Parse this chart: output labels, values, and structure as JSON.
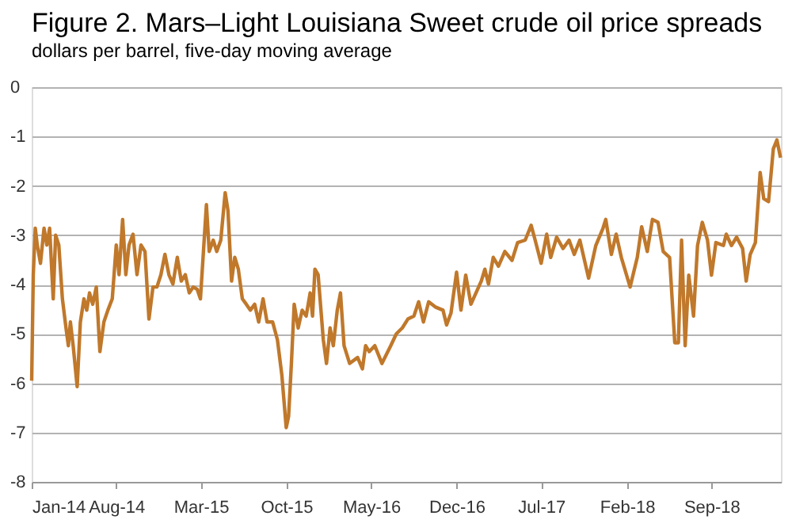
{
  "chart_data": {
    "type": "line",
    "title": "Figure 2. Mars–Light Louisiana Sweet crude oil price spreads",
    "subtitle": "dollars per barrel, five-day moving average",
    "x": [
      "2014-01-01",
      "2014-01-05",
      "2014-01-10",
      "2014-01-15",
      "2014-01-23",
      "2014-02-01",
      "2014-02-08",
      "2014-02-15",
      "2014-02-24",
      "2014-03-02",
      "2014-03-10",
      "2014-03-19",
      "2014-03-28",
      "2014-04-03",
      "2014-04-08",
      "2014-04-15",
      "2014-04-25",
      "2014-05-03",
      "2014-05-12",
      "2014-05-19",
      "2014-05-26",
      "2014-06-03",
      "2014-06-12",
      "2014-06-21",
      "2014-07-01",
      "2014-07-11",
      "2014-07-22",
      "2014-08-01",
      "2014-08-08",
      "2014-08-17",
      "2014-08-25",
      "2014-09-02",
      "2014-09-12",
      "2014-09-22",
      "2014-10-02",
      "2014-10-12",
      "2014-10-22",
      "2014-11-01",
      "2014-11-11",
      "2014-11-21",
      "2014-12-01",
      "2014-12-11",
      "2014-12-21",
      "2015-01-01",
      "2015-01-11",
      "2015-01-21",
      "2015-01-31",
      "2015-02-10",
      "2015-02-20",
      "2015-02-28",
      "2015-03-15",
      "2015-03-22",
      "2015-04-01",
      "2015-04-10",
      "2015-04-20",
      "2015-05-01",
      "2015-05-08",
      "2015-05-17",
      "2015-05-25",
      "2015-06-03",
      "2015-06-13",
      "2015-06-23",
      "2015-07-03",
      "2015-07-14",
      "2015-07-24",
      "2015-08-04",
      "2015-08-14",
      "2015-08-28",
      "2015-09-09",
      "2015-09-20",
      "2015-10-01",
      "2015-10-07",
      "2015-10-14",
      "2015-10-21",
      "2015-10-31",
      "2015-11-10",
      "2015-11-20",
      "2015-11-30",
      "2015-12-06",
      "2015-12-12",
      "2015-12-20",
      "2016-01-02",
      "2016-01-10",
      "2016-01-19",
      "2016-01-27",
      "2016-02-06",
      "2016-02-14",
      "2016-02-23",
      "2016-03-08",
      "2016-03-28",
      "2016-04-09",
      "2016-04-17",
      "2016-04-26",
      "2016-05-10",
      "2016-05-28",
      "2016-06-19",
      "2016-07-03",
      "2016-07-18",
      "2016-08-01",
      "2016-08-16",
      "2016-08-28",
      "2016-09-09",
      "2016-09-22",
      "2016-10-10",
      "2016-10-28",
      "2016-11-06",
      "2016-11-17",
      "2016-12-01",
      "2016-12-12",
      "2016-12-24",
      "2017-01-06",
      "2017-02-01",
      "2017-02-10",
      "2017-02-19",
      "2017-03-03",
      "2017-03-16",
      "2017-04-01",
      "2017-04-19",
      "2017-05-03",
      "2017-05-22",
      "2017-06-06",
      "2017-06-16",
      "2017-07-01",
      "2017-07-15",
      "2017-07-25",
      "2017-08-09",
      "2017-08-25",
      "2017-09-09",
      "2017-09-22",
      "2017-10-06",
      "2017-10-28",
      "2017-11-15",
      "2017-12-03",
      "2017-12-10",
      "2017-12-24",
      "2018-01-05",
      "2018-01-18",
      "2018-02-09",
      "2018-02-27",
      "2018-03-10",
      "2018-03-24",
      "2018-04-06",
      "2018-04-20",
      "2018-05-03",
      "2018-05-19",
      "2018-06-01",
      "2018-06-10",
      "2018-06-18",
      "2018-06-27",
      "2018-07-06",
      "2018-07-18",
      "2018-07-28",
      "2018-08-09",
      "2018-08-22",
      "2018-09-01",
      "2018-09-12",
      "2018-10-01",
      "2018-10-08",
      "2018-10-21",
      "2018-11-03",
      "2018-11-18",
      "2018-11-27",
      "2018-12-07",
      "2018-12-20",
      "2019-01-01",
      "2019-01-10",
      "2019-01-22",
      "2019-02-03",
      "2019-02-12",
      "2019-02-21"
    ],
    "series": [
      {
        "color": "#c0782b",
        "values": [
          -5.95,
          -3.8,
          -2.86,
          -3.2,
          -3.57,
          -2.86,
          -3.2,
          -2.86,
          -4.29,
          -3.0,
          -3.2,
          -4.29,
          -4.88,
          -5.24,
          -4.76,
          -5.24,
          -6.07,
          -4.76,
          -4.29,
          -4.52,
          -4.17,
          -4.4,
          -4.05,
          -5.36,
          -4.76,
          -4.52,
          -4.29,
          -3.2,
          -3.8,
          -2.68,
          -3.8,
          -3.2,
          -2.98,
          -3.8,
          -3.2,
          -3.33,
          -4.7,
          -4.05,
          -4.05,
          -3.8,
          -3.39,
          -3.8,
          -3.99,
          -3.45,
          -3.93,
          -3.8,
          -4.17,
          -4.05,
          -4.1,
          -4.29,
          -2.38,
          -3.33,
          -3.1,
          -3.33,
          -3.1,
          -2.14,
          -2.5,
          -3.93,
          -3.45,
          -3.69,
          -4.29,
          -4.4,
          -4.52,
          -4.4,
          -4.76,
          -4.29,
          -4.76,
          -4.76,
          -5.12,
          -5.83,
          -6.9,
          -6.67,
          -5.6,
          -4.4,
          -4.88,
          -4.52,
          -4.64,
          -4.17,
          -4.64,
          -3.69,
          -3.8,
          -5.12,
          -5.6,
          -4.88,
          -5.24,
          -4.52,
          -4.17,
          -5.24,
          -5.6,
          -5.48,
          -5.71,
          -5.24,
          -5.36,
          -5.24,
          -5.6,
          -5.24,
          -5.0,
          -4.88,
          -4.7,
          -4.64,
          -4.35,
          -4.76,
          -4.35,
          -4.46,
          -4.52,
          -4.82,
          -4.58,
          -3.75,
          -4.52,
          -3.81,
          -4.4,
          -3.93,
          -3.69,
          -3.99,
          -3.45,
          -3.63,
          -3.33,
          -3.51,
          -3.15,
          -3.1,
          -2.8,
          -3.1,
          -3.57,
          -2.98,
          -3.45,
          -3.04,
          -3.27,
          -3.1,
          -3.39,
          -3.1,
          -3.87,
          -3.21,
          -2.86,
          -2.68,
          -3.39,
          -2.98,
          -3.45,
          -4.05,
          -3.45,
          -2.83,
          -3.33,
          -2.68,
          -2.74,
          -3.33,
          -3.45,
          -5.18,
          -5.18,
          -3.1,
          -5.24,
          -3.81,
          -4.64,
          -3.21,
          -2.74,
          -3.1,
          -3.81,
          -3.15,
          -3.21,
          -2.98,
          -3.21,
          -3.04,
          -3.27,
          -3.93,
          -3.39,
          -3.15,
          -1.73,
          -2.26,
          -2.32,
          -1.25,
          -1.07,
          -1.43
        ]
      }
    ],
    "xlim": [
      "2014-01-01",
      "2019-02-22"
    ],
    "xticks": [
      {
        "value": "2014-01-01",
        "label": "Jan-14"
      },
      {
        "value": "2014-08-01",
        "label": "Aug-14"
      },
      {
        "value": "2015-03-01",
        "label": "Mar-15"
      },
      {
        "value": "2015-10-01",
        "label": "Oct-15"
      },
      {
        "value": "2016-05-01",
        "label": "May-16"
      },
      {
        "value": "2016-12-01",
        "label": "Dec-16"
      },
      {
        "value": "2017-07-01",
        "label": "Jul-17"
      },
      {
        "value": "2018-02-01",
        "label": "Feb-18"
      },
      {
        "value": "2018-09-01",
        "label": "Sep-18"
      }
    ],
    "ylim": [
      -8,
      0
    ],
    "yticks": [
      -8,
      -7,
      -6,
      -5,
      -4,
      -3,
      -2,
      -1,
      0
    ],
    "grid": "y"
  }
}
